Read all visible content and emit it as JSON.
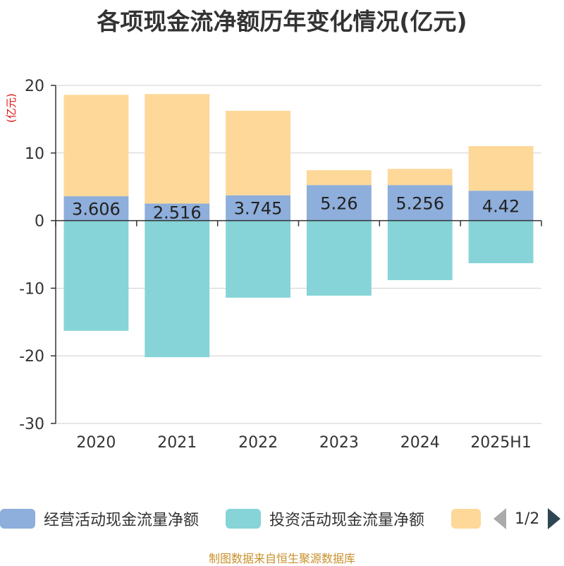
{
  "title": "各项现金流净额历年变化情况(亿元)",
  "unit_label": "(亿元)",
  "footer": "制图数据来自恒生聚源数据库",
  "legend": {
    "items": [
      {
        "label": "经营活动现金流量净额",
        "color": "#8eaedb"
      },
      {
        "label": "投资活动现金流量净额",
        "color": "#86d4d7"
      },
      {
        "label": "",
        "color": "#fdd899"
      }
    ],
    "page": "1/2"
  },
  "chart_data": {
    "type": "bar",
    "stacked": true,
    "categories": [
      "2020",
      "2021",
      "2022",
      "2023",
      "2024",
      "2025H1"
    ],
    "ylim": [
      -30,
      20
    ],
    "yticks": [
      20,
      10,
      0,
      -10,
      -20,
      -30
    ],
    "grid": true,
    "series": [
      {
        "name": "经营活动现金流量净额",
        "color": "#8eaedb",
        "values": [
          3.606,
          2.516,
          3.745,
          5.26,
          5.256,
          4.42
        ],
        "labels": [
          "3.606",
          "2.516",
          "3.745",
          "5.26",
          "5.256",
          "4.42"
        ]
      },
      {
        "name": "投资活动现金流量净额",
        "color": "#86d4d7",
        "values": [
          -16.3,
          -20.2,
          -11.4,
          -11.1,
          -8.8,
          -6.3
        ]
      },
      {
        "color": "#fdd899",
        "values": [
          15.0,
          16.2,
          12.5,
          2.2,
          2.4,
          6.6
        ]
      }
    ]
  }
}
